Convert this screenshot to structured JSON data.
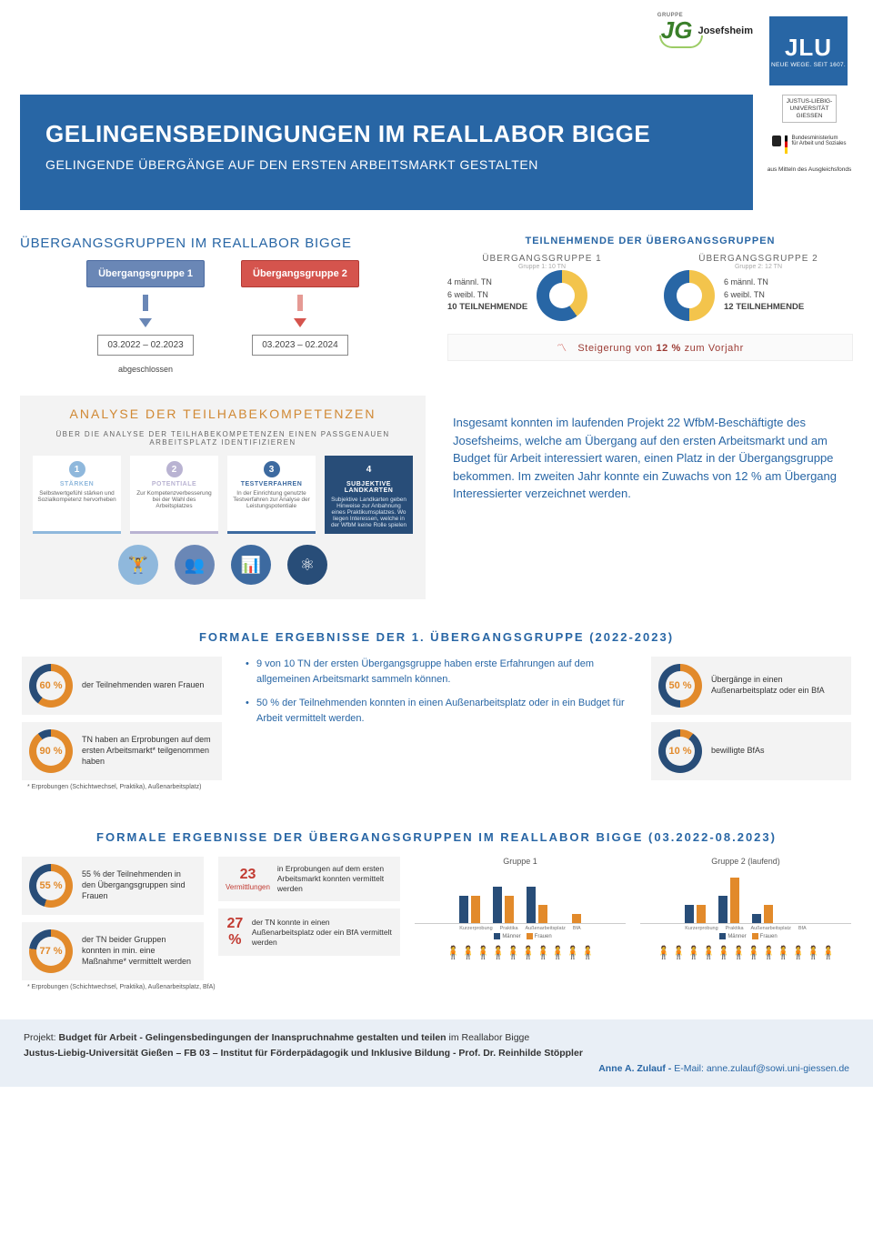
{
  "colors": {
    "primary_blue": "#2866a5",
    "mid_blue": "#6a87b6",
    "dark_blue": "#284d78",
    "orange": "#e28a2b",
    "dark_orange": "#d08833",
    "red": "#c23b32",
    "yellow": "#f3c44c",
    "grey_bg": "#f3f3f3",
    "light_blue_icon": "#8fb8dc"
  },
  "logos": {
    "jg_gruppe": "GRUPPE",
    "jg_mark": "JG",
    "josefsheim": "Josefsheim",
    "jlu": "JLU",
    "jlu_tagline": "NEUE WEGE. SEIT 1607.",
    "uni_full": "JUSTUS-LIEBIG-\nUNIVERSITÄT\nGIESSEN",
    "bund_ministry": "Bundesministerium\nfür Arbeit und Soziales",
    "ausgleichsfonds": "aus Mitteln des Ausgleichsfonds"
  },
  "banner": {
    "title": "GELINGENSBEDINGUNGEN IM REALLABOR BIGGE",
    "subtitle": "GELINGENDE ÜBERGÄNGE AUF DEN ERSTEN ARBEITSMARKT GESTALTEN"
  },
  "transition_groups_panel": {
    "title": "ÜBERGANGSGRUPPEN IM REALLABOR BIGGE",
    "group1_label": "Übergangsgruppe 1",
    "group1_period": "03.2022 – 02.2023",
    "group1_status": "abgeschlossen",
    "group2_label": "Übergangsgruppe 2",
    "group2_period": "03.2023 – 02.2024"
  },
  "participants_panel": {
    "title": "TEILNEHMENDE DER ÜBERGANGSGRUPPEN",
    "g1_head": "ÜBERGANGSGRUPPE 1",
    "g1_sub": "Gruppe 1: 10 TN",
    "g1_male": "4 männl. TN",
    "g1_female": "6 weibl. TN",
    "g1_total": "10 TEILNEHMENDE",
    "g1_male_n": 4,
    "g1_female_n": 6,
    "g2_head": "ÜBERGANGSGRUPPE 2",
    "g2_sub": "Gruppe 2: 12 TN",
    "g2_male": "6 männl. TN",
    "g2_female": "6 weibl. TN",
    "g2_total": "12 TEILNEHMENDE",
    "g2_male_n": 6,
    "g2_female_n": 6,
    "increase_pre": "Steigerung von ",
    "increase_pct": "12 %",
    "increase_post": " zum Vorjahr"
  },
  "analysis_panel": {
    "title": "ANALYSE DER TEILHABEKOMPETENZEN",
    "subtitle": "ÜBER DIE ANALYSE DER TEILHABEKOMPETENZEN EINEN PASSGENAUEN ARBEITSPLATZ IDENTIFIZIEREN",
    "steps": [
      {
        "n": "1",
        "title": "STÄRKEN",
        "body": "Selbstwertgefühl stärken und Sozialkompetenz hervorheben",
        "color": "#8fb8dc"
      },
      {
        "n": "2",
        "title": "POTENTIALE",
        "body": "Zur Kompetenzverbesserung bei der Wahl des Arbeitsplatzes",
        "color": "#b9b3d2"
      },
      {
        "n": "3",
        "title": "TESTVERFAHREN",
        "body": "In der Einrichtung genutzte Testverfahren zur Analyse der Leistungspotentiale",
        "color": "#3d6aa0"
      },
      {
        "n": "4",
        "title": "SUBJEKTIVE LANDKARTEN",
        "body": "Subjektive Landkarten geben Hinweise zur Anbahnung eines Praktikumsplatzes. Wo liegen Interessen, welche in der WfbM keine Rolle spielen",
        "color": "#284d78",
        "dark": true
      }
    ],
    "icon_colors": [
      "#8fb8dc",
      "#6a87b6",
      "#3d6aa0",
      "#284d78"
    ]
  },
  "summary_text": "Insgesamt konnten im laufenden Projekt 22 WfbM-Beschäftigte des Josefsheims, welche am Übergang auf den ersten Arbeitsmarkt und am Budget für Arbeit interessiert waren, einen Platz in der Übergangsgruppe bekommen. Im zweiten Jahr konnte ein Zuwachs von 12 % am Übergang Interessierter verzeichnet werden.",
  "results1": {
    "title": "FORMALE ERGEBNISSE DER 1. ÜBERGANGSGRUPPE (2022-2023)",
    "left": [
      {
        "pct": "60 %",
        "p": 60,
        "desc": "der Teilnehmenden waren Frauen",
        "ring_main": "#e28a2b",
        "ring_rest": "#284d78"
      },
      {
        "pct": "90 %",
        "p": 90,
        "desc": "TN haben an Erprobungen auf dem ersten Arbeitsmarkt* teilgenommen haben",
        "ring_main": "#e28a2b",
        "ring_rest": "#284d78"
      }
    ],
    "bullets": [
      "9 von 10 TN der ersten Übergangsgruppe haben erste Erfahrungen auf dem allgemeinen Arbeitsmarkt sammeln können.",
      "50 % der Teilnehmenden konnten in einen Außenarbeitsplatz oder in ein Budget für Arbeit vermittelt werden."
    ],
    "right": [
      {
        "pct": "50 %",
        "p": 50,
        "desc": "Übergänge in einen Außenarbeitsplatz oder ein BfA",
        "ring_main": "#e28a2b",
        "ring_rest": "#284d78"
      },
      {
        "pct": "10 %",
        "p": 10,
        "desc": "bewilligte BfAs",
        "ring_main": "#e28a2b",
        "ring_rest": "#284d78"
      }
    ],
    "footnote": "* Erprobungen (Schichtwechsel, Praktika), Außenarbeitsplatz)"
  },
  "results2": {
    "title": "FORMALE ERGEBNISSE DER ÜBERGANGSGRUPPEN IM REALLABOR BIGGE (03.2022-08.2023)",
    "left_stats": [
      {
        "pct": "55 %",
        "p": 55,
        "desc": "55 % der Teilnehmenden in den Übergangsgruppen sind Frauen",
        "ring_main": "#e28a2b",
        "ring_rest": "#284d78"
      },
      {
        "pct": "77 %",
        "p": 77,
        "desc": "der TN beider Gruppen konnten in min. eine Maßnahme* vermittelt werden",
        "ring_main": "#e28a2b",
        "ring_rest": "#284d78"
      }
    ],
    "mid_nums": [
      {
        "big": "23",
        "small": "Vermittlungen",
        "desc": "in Erprobungen auf dem ersten Arbeitsmarkt konnten vermittelt werden"
      },
      {
        "big": "27 %",
        "small": "",
        "desc": "der TN konnte in einen Außenarbeitsplatz oder ein BfA vermittelt werden"
      }
    ],
    "footnote": "* Erprobungen (Schichtwechsel, Praktika), Außenarbeitsplatz, BfA)",
    "charts": {
      "categories": [
        "Kurzerprobung",
        "Praktika",
        "Außenarbeitsplatz",
        "BfA"
      ],
      "g1_title": "Gruppe 1",
      "g2_title": "Gruppe 2 (laufend)",
      "ymax": 6,
      "g1_m": [
        3,
        4,
        4,
        0
      ],
      "g1_f": [
        3,
        3,
        2,
        1
      ],
      "g2_m": [
        2,
        3,
        1,
        0
      ],
      "g2_f": [
        2,
        5,
        2,
        0
      ],
      "legend_m": "Männer",
      "legend_f": "Frauen",
      "color_m": "#284d78",
      "color_f": "#e28a2b"
    },
    "people": {
      "g1_total": 10,
      "g1_highlight": 5,
      "g2_total": 12,
      "g2_highlight": 1,
      "color_on": "#e28a2b",
      "color_off": "#9aa6b2"
    }
  },
  "footer": {
    "line1a": "Projekt: ",
    "line1b": "Budget für Arbeit - Gelingensbedingungen der Inanspruchnahme gestalten und teilen",
    "line1c": " im Reallabor Bigge",
    "line2": "Justus-Liebig-Universität Gießen – FB 03 – Institut für Förderpädagogik und Inklusive Bildung - Prof. Dr. Reinhilde Stöppler",
    "contact_name": "Anne A. Zulauf - ",
    "contact_label": "E-Mail: ",
    "contact_email": "anne.zulauf@sowi.uni-giessen.de"
  }
}
